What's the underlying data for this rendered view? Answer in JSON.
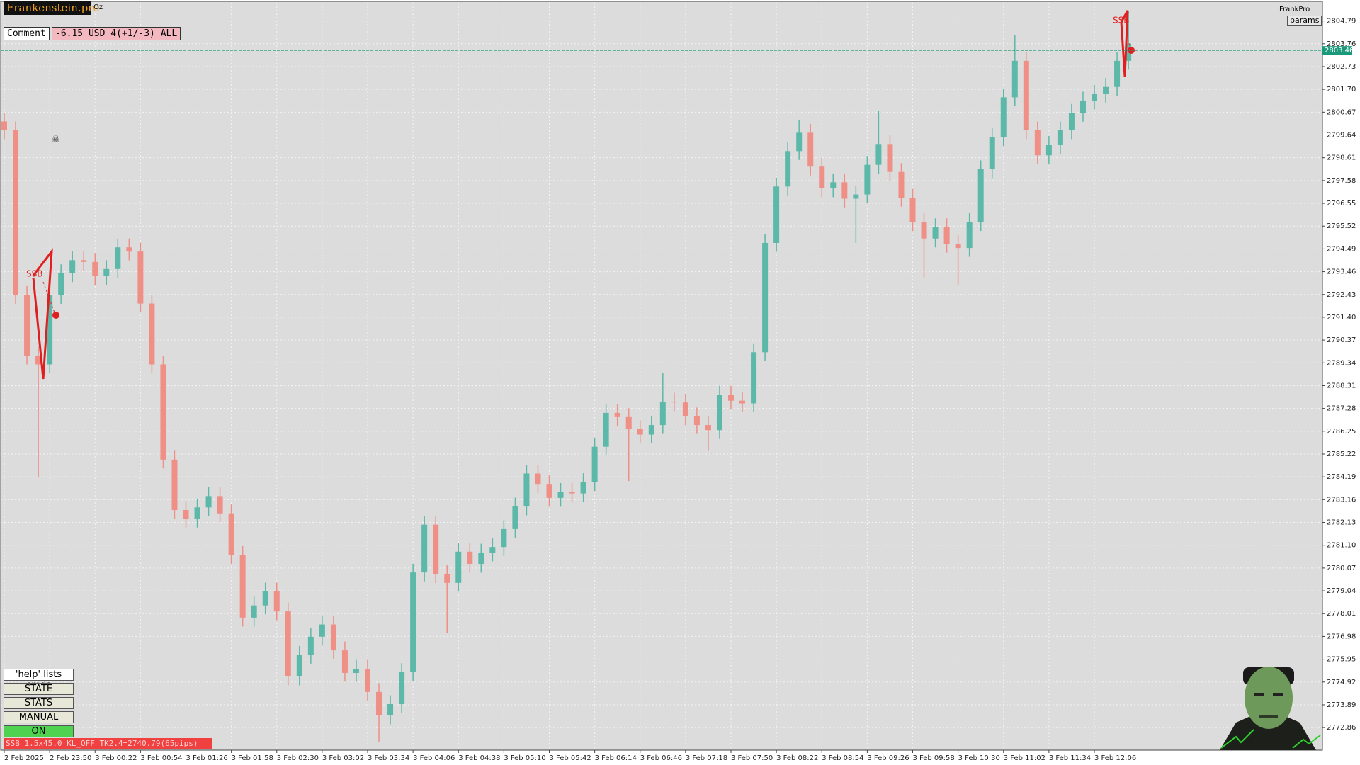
{
  "header": {
    "brand": "Frankenstein.pro",
    "symbol_note": "Oz",
    "comment_label": "Comment",
    "comment_value": "-6.15 USD 4(+1/-3) ALL",
    "profile": "FrankPro",
    "params_button": "params"
  },
  "controls": {
    "help": "'help' lists cmds",
    "buttons": [
      "STATE",
      "STATS",
      "MANUAL",
      "ON"
    ],
    "status": "SSB 1.5x45.0 KL_OFF TK2.4=2740.79(65pips)"
  },
  "chart_data": {
    "type": "candlestick",
    "annotations": [
      "SSB",
      "SSB"
    ],
    "categories": [
      "2 Feb 2025",
      null,
      null,
      null,
      "2 Feb 23:50",
      null,
      null,
      null,
      "3 Feb 00:22",
      null,
      null,
      null,
      "3 Feb 00:54",
      null,
      null,
      null,
      "3 Feb 01:26",
      null,
      null,
      null,
      "3 Feb 01:58",
      null,
      null,
      null,
      "3 Feb 02:30",
      null,
      null,
      null,
      "3 Feb 03:02",
      null,
      null,
      null,
      "3 Feb 03:34",
      null,
      null,
      null,
      "3 Feb 04:06",
      null,
      null,
      null,
      "3 Feb 04:38",
      null,
      null,
      null,
      "3 Feb 05:10",
      null,
      null,
      null,
      "3 Feb 05:42",
      null,
      null,
      null,
      "3 Feb 06:14",
      null,
      null,
      null,
      "3 Feb 06:46",
      null,
      null,
      null,
      "3 Feb 07:18",
      null,
      null,
      null,
      "3 Feb 07:50",
      null,
      null,
      null,
      "3 Feb 08:22",
      null,
      null,
      null,
      "3 Feb 08:54",
      null,
      null,
      null,
      "3 Feb 09:26",
      null,
      null,
      null,
      "3 Feb 09:58",
      null,
      null,
      null,
      "3 Feb 10:30",
      null,
      null,
      null,
      "3 Feb 11:02",
      null,
      null,
      null,
      "3 Feb 11:34",
      null,
      null,
      null,
      "3 Feb 12:06",
      null,
      null,
      null
    ],
    "open": [
      2800.25,
      2799.85,
      2792.41,
      2789.67,
      2789.27,
      2792.41,
      2793.39,
      2793.98,
      2793.9,
      2793.27,
      2793.58,
      2794.56,
      2794.37,
      2792.02,
      2789.27,
      2784.97,
      2782.69,
      2782.3,
      2782.81,
      2783.32,
      2782.54,
      2780.66,
      2777.83,
      2778.38,
      2779.01,
      2778.11,
      2775.17,
      2776.15,
      2776.97,
      2777.52,
      2776.35,
      2775.33,
      2775.52,
      2774.47,
      2773.41,
      2773.92,
      2775.37,
      2779.87,
      2782.03,
      2779.79,
      2779.4,
      2780.81,
      2780.26,
      2780.77,
      2781.02,
      2781.83,
      2782.85,
      2784.34,
      2783.87,
      2783.24,
      2783.51,
      2783.44,
      2783.95,
      2785.55,
      2787.08,
      2786.89,
      2786.34,
      2786.1,
      2786.53,
      2787.59,
      2787.55,
      2786.92,
      2786.53,
      2786.3,
      2787.9,
      2787.63,
      2787.51,
      2789.82,
      2794.76,
      2797.31,
      2798.91,
      2799.74,
      2798.21,
      2797.23,
      2797.5,
      2796.76,
      2796.95,
      2798.29,
      2799.23,
      2797.97,
      2796.8,
      2795.7,
      2794.96,
      2795.47,
      2794.72,
      2794.53,
      2795.7,
      2798.09,
      2799.54,
      2801.34,
      2802.99,
      2799.85,
      2798.72,
      2799.19,
      2799.85,
      2800.64,
      2801.19,
      2801.5,
      2801.81,
      2802.99
    ],
    "high": [
      2800.65,
      2800.25,
      2792.81,
      2790.07,
      2792.81,
      2793.79,
      2794.38,
      2794.38,
      2794.3,
      2793.98,
      2794.96,
      2794.96,
      2794.77,
      2792.42,
      2789.67,
      2785.37,
      2783.09,
      2783.21,
      2783.72,
      2783.72,
      2782.94,
      2781.06,
      2778.78,
      2779.41,
      2779.41,
      2778.51,
      2776.55,
      2777.37,
      2777.92,
      2777.92,
      2776.75,
      2775.92,
      2775.92,
      2774.87,
      2774.32,
      2775.77,
      2780.27,
      2782.43,
      2782.43,
      2780.19,
      2781.21,
      2781.21,
      2781.17,
      2781.42,
      2782.23,
      2783.25,
      2784.74,
      2784.74,
      2784.27,
      2783.91,
      2783.91,
      2784.35,
      2785.95,
      2787.48,
      2787.48,
      2787.29,
      2786.74,
      2786.93,
      2788.88,
      2787.99,
      2787.95,
      2787.32,
      2786.93,
      2788.3,
      2788.3,
      2788.03,
      2790.22,
      2795.16,
      2797.71,
      2799.31,
      2800.32,
      2800.14,
      2798.61,
      2797.9,
      2797.9,
      2797.35,
      2798.69,
      2800.72,
      2799.63,
      2798.37,
      2797.2,
      2796.1,
      2795.87,
      2795.87,
      2795.12,
      2796.1,
      2798.49,
      2799.94,
      2801.74,
      2804.16,
      2803.39,
      2800.25,
      2799.59,
      2800.25,
      2801.04,
      2801.59,
      2801.9,
      2802.21,
      2803.39,
      2805.26
    ],
    "low": [
      2799.45,
      2792.01,
      2789.27,
      2784.18,
      2788.87,
      2792.01,
      2792.99,
      2793.5,
      2792.87,
      2792.87,
      2793.18,
      2793.97,
      2791.62,
      2788.87,
      2784.57,
      2782.29,
      2781.9,
      2781.9,
      2782.41,
      2782.14,
      2780.26,
      2777.43,
      2777.43,
      2777.98,
      2777.71,
      2774.77,
      2774.77,
      2775.75,
      2776.57,
      2775.95,
      2774.93,
      2774.93,
      2774.07,
      2772.23,
      2773.01,
      2773.52,
      2774.97,
      2779.47,
      2779.39,
      2777.13,
      2779.0,
      2779.86,
      2779.86,
      2780.37,
      2780.62,
      2781.43,
      2782.45,
      2783.47,
      2782.84,
      2782.84,
      2783.04,
      2783.04,
      2783.55,
      2785.15,
      2786.49,
      2784.0,
      2785.7,
      2785.7,
      2786.13,
      2787.15,
      2786.52,
      2786.13,
      2785.36,
      2785.9,
      2787.23,
      2787.11,
      2787.11,
      2789.42,
      2794.36,
      2796.91,
      2798.51,
      2797.81,
      2796.83,
      2796.83,
      2796.36,
      2794.76,
      2796.55,
      2797.89,
      2797.57,
      2796.4,
      2795.3,
      2793.19,
      2794.56,
      2794.32,
      2792.88,
      2794.13,
      2795.3,
      2797.69,
      2799.14,
      2800.94,
      2799.45,
      2798.32,
      2798.32,
      2798.79,
      2799.45,
      2800.24,
      2800.79,
      2801.1,
      2801.41,
      2802.59
    ],
    "close": [
      2799.85,
      2792.41,
      2789.67,
      2789.27,
      2792.41,
      2793.39,
      2793.98,
      2793.9,
      2793.27,
      2793.58,
      2794.56,
      2794.37,
      2792.02,
      2789.27,
      2784.97,
      2782.69,
      2782.3,
      2782.81,
      2783.32,
      2782.54,
      2780.66,
      2777.83,
      2778.38,
      2779.01,
      2778.11,
      2775.17,
      2776.15,
      2776.97,
      2777.52,
      2776.35,
      2775.33,
      2775.52,
      2774.47,
      2773.41,
      2773.92,
      2775.37,
      2779.87,
      2782.03,
      2779.79,
      2779.4,
      2780.81,
      2780.26,
      2780.77,
      2781.02,
      2781.83,
      2782.85,
      2784.34,
      2783.87,
      2783.24,
      2783.51,
      2783.44,
      2783.95,
      2785.55,
      2787.08,
      2786.89,
      2786.34,
      2786.1,
      2786.53,
      2787.59,
      2787.55,
      2786.92,
      2786.53,
      2786.3,
      2787.9,
      2787.63,
      2787.51,
      2789.82,
      2794.76,
      2797.31,
      2798.91,
      2799.74,
      2798.21,
      2797.23,
      2797.5,
      2796.76,
      2796.95,
      2798.29,
      2799.23,
      2797.97,
      2796.8,
      2795.7,
      2794.96,
      2795.47,
      2794.72,
      2794.53,
      2795.7,
      2798.09,
      2799.54,
      2801.34,
      2802.99,
      2799.85,
      2798.72,
      2799.19,
      2799.85,
      2800.64,
      2801.19,
      2801.5,
      2801.81,
      2802.99,
      2803.77
    ],
    "up_color": "#5cb8a8",
    "down_color": "#ef8f86",
    "current_price": 2803.46,
    "grid": true,
    "ylim": [
      2771.84,
      2805.61
    ],
    "yticks": [
      2804.79,
      2803.76,
      2802.73,
      {
        "value": 2801.7,
        "label": "2801.70"
      },
      2800.67,
      2799.64,
      2798.61,
      2797.58,
      2796.55,
      2795.52,
      2794.49,
      2793.46,
      2792.43,
      {
        "value": 2791.4,
        "label": "2791.40"
      },
      2790.37,
      2789.34,
      2788.31,
      2787.28,
      2786.25,
      2785.22,
      2784.19,
      2783.16,
      2782.13,
      {
        "value": 2781.1,
        "label": "2781.10"
      },
      2780.07,
      2779.04,
      2778.01,
      2776.98,
      2775.95,
      2774.92,
      2773.89,
      2772.86
    ]
  }
}
